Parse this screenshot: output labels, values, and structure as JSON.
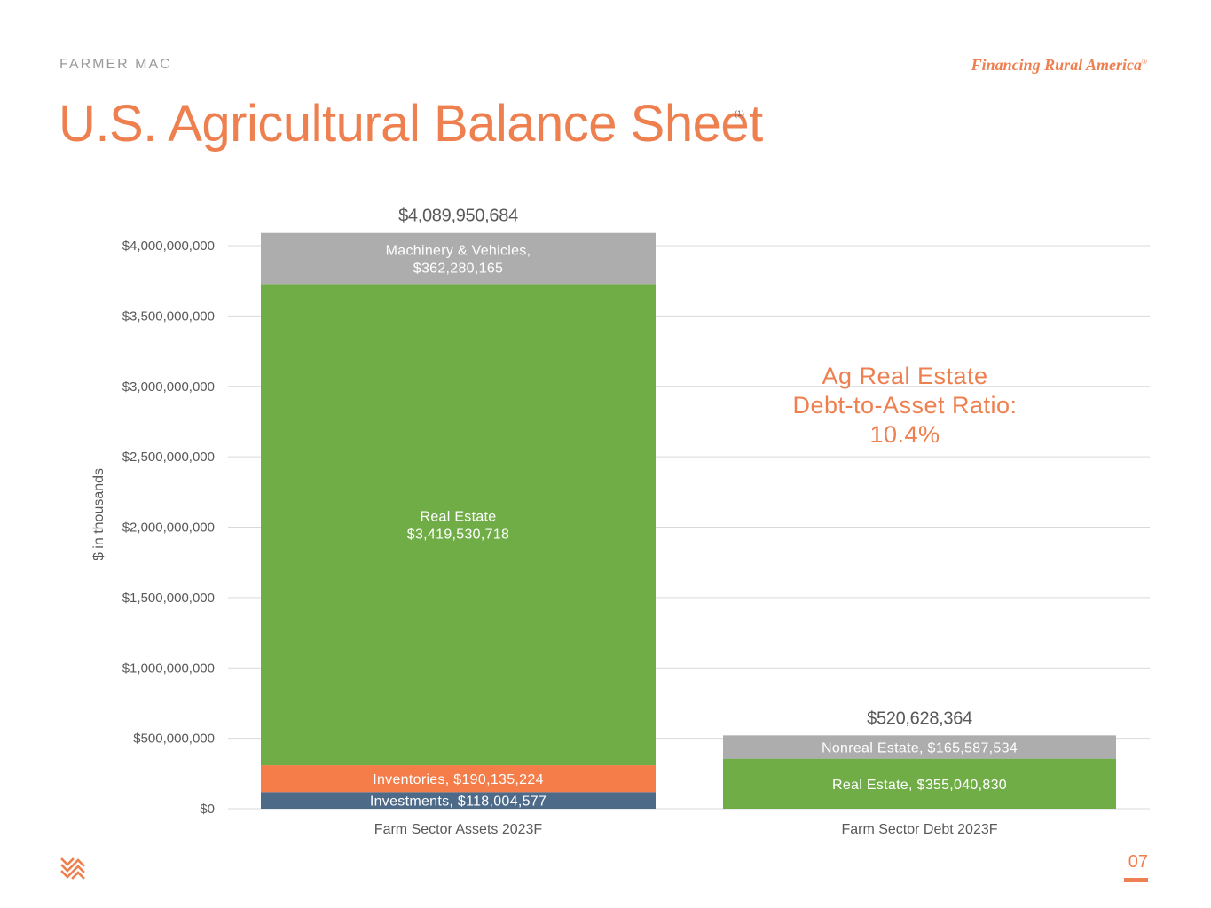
{
  "header": {
    "brand": "FARMER   MAC",
    "tagline": "Financing Rural America",
    "tagline_mark": "®"
  },
  "slide": {
    "title": "U.S. Agricultural Balance Sheet",
    "title_note": "(1)",
    "page_number": "07"
  },
  "annotation": {
    "line1": "Ag Real Estate",
    "line2": "Debt-to-Asset Ratio:",
    "line3": "10.4%"
  },
  "colors": {
    "accent": "#ee7f4f",
    "real_estate": "#70ad47",
    "gray_segment": "#adadad",
    "inventories": "#f47d4a",
    "investments": "#4e6a89",
    "gridline": "#d9d9d9",
    "axis_text": "#595959"
  },
  "icons": {
    "logo": "farmer-mac-chevron-logo-icon"
  },
  "chart_data": {
    "type": "bar",
    "stacked": true,
    "categories": [
      "Farm Sector Assets 2023F",
      "Farm Sector Debt 2023F"
    ],
    "ylabel": "$ in thousands",
    "ylim": [
      0,
      4000000000
    ],
    "yticks": [
      0,
      500000000,
      1000000000,
      1500000000,
      2000000000,
      2500000000,
      3000000000,
      3500000000,
      4000000000
    ],
    "ytick_labels": [
      "$0",
      "$500,000,000",
      "$1,000,000,000",
      "$1,500,000,000",
      "$2,000,000,000",
      "$2,500,000,000",
      "$3,000,000,000",
      "$3,500,000,000",
      "$4,000,000,000"
    ],
    "grid": true,
    "bars": [
      {
        "category": "Farm Sector Assets 2023F",
        "total": 4089950684,
        "total_label": "$4,089,950,684",
        "segments": [
          {
            "name": "Investments",
            "value": 118004577,
            "label": [
              "Investments, $118,004,577"
            ],
            "color": "#4e6a89"
          },
          {
            "name": "Inventories",
            "value": 190135224,
            "label": [
              "Inventories, $190,135,224"
            ],
            "color": "#f47d4a"
          },
          {
            "name": "Real Estate",
            "value": 3419530718,
            "label": [
              "Real Estate",
              "$3,419,530,718"
            ],
            "color": "#70ad47"
          },
          {
            "name": "Machinery & Vehicles",
            "value": 362280165,
            "label": [
              "Machinery & Vehicles,",
              "$362,280,165"
            ],
            "color": "#adadad"
          }
        ]
      },
      {
        "category": "Farm Sector Debt 2023F",
        "total": 520628364,
        "total_label": "$520,628,364",
        "segments": [
          {
            "name": "Real Estate",
            "value": 355040830,
            "label": [
              "Real Estate, $355,040,830"
            ],
            "color": "#70ad47"
          },
          {
            "name": "Nonreal Estate",
            "value": 165587534,
            "label": [
              "Nonreal Estate, $165,587,534"
            ],
            "color": "#adadad"
          }
        ]
      }
    ]
  }
}
